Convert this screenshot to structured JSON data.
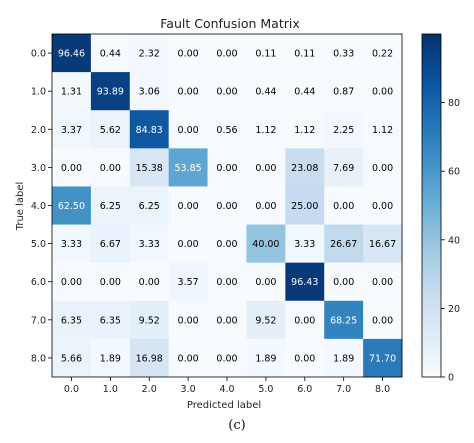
{
  "chart_data": {
    "type": "heatmap",
    "title": "Fault Confusion Matrix",
    "xlabel": "Predicted label",
    "ylabel": "True label",
    "x_categories": [
      "0.0",
      "1.0",
      "2.0",
      "3.0",
      "4.0",
      "5.0",
      "6.0",
      "7.0",
      "8.0"
    ],
    "y_categories": [
      "0.0",
      "1.0",
      "2.0",
      "3.0",
      "4.0",
      "5.0",
      "6.0",
      "7.0",
      "8.0"
    ],
    "values": [
      [
        96.46,
        0.44,
        2.32,
        0.0,
        0.0,
        0.11,
        0.11,
        0.33,
        0.22
      ],
      [
        1.31,
        93.89,
        3.06,
        0.0,
        0.0,
        0.44,
        0.44,
        0.87,
        0.0
      ],
      [
        3.37,
        5.62,
        84.83,
        0.0,
        0.56,
        1.12,
        1.12,
        2.25,
        1.12
      ],
      [
        0.0,
        0.0,
        15.38,
        53.85,
        0.0,
        0.0,
        23.08,
        7.69,
        0.0
      ],
      [
        62.5,
        6.25,
        6.25,
        0.0,
        0.0,
        0.0,
        25.0,
        0.0,
        0.0
      ],
      [
        3.33,
        6.67,
        3.33,
        0.0,
        0.0,
        40.0,
        3.33,
        26.67,
        16.67
      ],
      [
        0.0,
        0.0,
        0.0,
        3.57,
        0.0,
        0.0,
        96.43,
        0.0,
        0.0
      ],
      [
        6.35,
        6.35,
        9.52,
        0.0,
        0.0,
        9.52,
        0.0,
        68.25,
        0.0
      ],
      [
        5.66,
        1.89,
        16.98,
        0.0,
        0.0,
        1.89,
        0.0,
        1.89,
        71.7
      ]
    ],
    "colormap": "Blues",
    "colorbar": {
      "range": [
        0,
        100
      ],
      "ticks": [
        "0",
        "20",
        "40",
        "60",
        "80"
      ]
    },
    "grid": false
  },
  "caption": "(c)"
}
